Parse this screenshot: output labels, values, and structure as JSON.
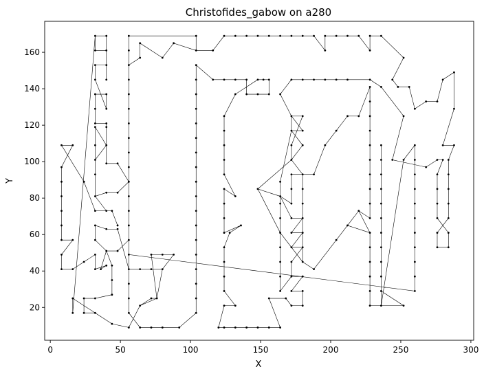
{
  "chart_data": {
    "type": "line",
    "title": "Christofides_gabow on a280",
    "xlabel": "X",
    "ylabel": "Y",
    "xlim": [
      -4,
      302
    ],
    "ylim": [
      2,
      177
    ],
    "xticks": [
      0,
      50,
      100,
      150,
      200,
      250,
      300
    ],
    "yticks": [
      20,
      40,
      60,
      80,
      100,
      120,
      140,
      160
    ],
    "grid": false,
    "marker": "dot",
    "line_color": "#000000",
    "tour": [
      [
        104,
        169
      ],
      [
        104,
        161
      ],
      [
        116,
        161
      ],
      [
        124,
        169
      ],
      [
        132,
        169
      ],
      [
        140,
        169
      ],
      [
        148,
        169
      ],
      [
        156,
        169
      ],
      [
        164,
        169
      ],
      [
        172,
        169
      ],
      [
        180,
        169
      ],
      [
        188,
        169
      ],
      [
        196,
        161
      ],
      [
        196,
        169
      ],
      [
        204,
        169
      ],
      [
        212,
        169
      ],
      [
        220,
        169
      ],
      [
        228,
        161
      ],
      [
        228,
        169
      ],
      [
        236,
        169
      ],
      [
        252,
        157
      ],
      [
        244,
        145
      ],
      [
        248,
        141
      ],
      [
        256,
        141
      ],
      [
        260,
        129
      ],
      [
        268,
        133
      ],
      [
        276,
        133
      ],
      [
        280,
        145
      ],
      [
        288,
        149
      ],
      [
        288,
        129
      ],
      [
        280,
        109
      ],
      [
        288,
        109
      ],
      [
        284,
        101
      ],
      [
        284,
        93
      ],
      [
        284,
        85
      ],
      [
        284,
        77
      ],
      [
        284,
        69
      ],
      [
        276,
        61
      ],
      [
        276,
        53
      ],
      [
        284,
        53
      ],
      [
        284,
        61
      ],
      [
        276,
        69
      ],
      [
        276,
        77
      ],
      [
        276,
        85
      ],
      [
        276,
        93
      ],
      [
        280,
        101
      ],
      [
        276,
        101
      ],
      [
        268,
        97
      ],
      [
        244,
        101
      ],
      [
        252,
        125
      ],
      [
        236,
        141
      ],
      [
        228,
        145
      ],
      [
        212,
        145
      ],
      [
        204,
        145
      ],
      [
        196,
        145
      ],
      [
        188,
        145
      ],
      [
        180,
        145
      ],
      [
        172,
        145
      ],
      [
        164,
        137
      ],
      [
        172,
        125
      ],
      [
        180,
        117
      ],
      [
        172,
        117
      ],
      [
        180,
        109
      ],
      [
        172,
        101
      ],
      [
        180,
        93
      ],
      [
        180,
        85
      ],
      [
        180,
        77
      ],
      [
        180,
        69
      ],
      [
        180,
        61
      ],
      [
        180,
        53
      ],
      [
        180,
        45
      ],
      [
        188,
        41
      ],
      [
        204,
        57
      ],
      [
        212,
        65
      ],
      [
        220,
        73
      ],
      [
        228,
        69
      ],
      [
        228,
        77
      ],
      [
        228,
        85
      ],
      [
        228,
        93
      ],
      [
        228,
        101
      ],
      [
        228,
        109
      ],
      [
        228,
        117
      ],
      [
        228,
        125
      ],
      [
        228,
        133
      ],
      [
        228,
        141
      ],
      [
        220,
        125
      ],
      [
        212,
        125
      ],
      [
        204,
        117
      ],
      [
        196,
        109
      ],
      [
        188,
        93
      ],
      [
        172,
        93
      ],
      [
        172,
        85
      ],
      [
        172,
        77
      ],
      [
        164,
        81
      ],
      [
        148,
        85
      ],
      [
        172,
        101
      ],
      [
        172,
        109
      ],
      [
        180,
        125
      ],
      [
        172,
        125
      ],
      [
        172,
        117
      ],
      [
        164,
        89
      ],
      [
        164,
        77
      ],
      [
        164,
        69
      ],
      [
        164,
        61
      ],
      [
        164,
        53
      ],
      [
        164,
        45
      ],
      [
        164,
        37
      ],
      [
        164,
        29
      ],
      [
        172,
        37
      ],
      [
        180,
        37
      ],
      [
        172,
        29
      ],
      [
        180,
        29
      ],
      [
        180,
        21
      ],
      [
        172,
        21
      ],
      [
        168,
        25
      ],
      [
        156,
        25
      ],
      [
        164,
        9
      ],
      [
        156,
        9
      ],
      [
        148,
        9
      ],
      [
        140,
        9
      ],
      [
        132,
        9
      ],
      [
        124,
        9
      ],
      [
        120,
        9
      ],
      [
        124,
        21
      ],
      [
        132,
        21
      ],
      [
        124,
        29
      ],
      [
        124,
        37
      ],
      [
        124,
        45
      ],
      [
        124,
        53
      ],
      [
        128,
        61
      ],
      [
        136,
        65
      ],
      [
        124,
        61
      ],
      [
        124,
        69
      ],
      [
        124,
        77
      ],
      [
        124,
        85
      ],
      [
        132,
        81
      ],
      [
        124,
        93
      ],
      [
        124,
        101
      ],
      [
        124,
        109
      ],
      [
        124,
        117
      ],
      [
        124,
        125
      ],
      [
        132,
        137
      ],
      [
        148,
        145
      ],
      [
        152,
        145
      ],
      [
        156,
        145
      ],
      [
        156,
        137
      ],
      [
        148,
        137
      ],
      [
        140,
        137
      ],
      [
        140,
        145
      ],
      [
        132,
        145
      ],
      [
        124,
        145
      ],
      [
        116,
        145
      ],
      [
        104,
        153
      ],
      [
        104,
        145
      ],
      [
        104,
        137
      ],
      [
        104,
        129
      ],
      [
        104,
        121
      ],
      [
        104,
        113
      ],
      [
        104,
        105
      ],
      [
        104,
        97
      ],
      [
        104,
        89
      ],
      [
        104,
        81
      ],
      [
        104,
        73
      ],
      [
        104,
        65
      ],
      [
        104,
        57
      ],
      [
        104,
        49
      ],
      [
        104,
        41
      ],
      [
        104,
        33
      ],
      [
        104,
        25
      ],
      [
        104,
        17
      ],
      [
        92,
        9
      ],
      [
        80,
        9
      ],
      [
        72,
        9
      ],
      [
        64,
        9
      ],
      [
        56,
        17
      ],
      [
        56,
        25
      ],
      [
        56,
        33
      ],
      [
        56,
        41
      ],
      [
        64,
        41
      ],
      [
        72,
        41
      ],
      [
        80,
        41
      ],
      [
        88,
        49
      ],
      [
        80,
        49
      ],
      [
        72,
        49
      ],
      [
        76,
        25
      ],
      [
        72,
        25
      ],
      [
        64,
        21
      ],
      [
        56,
        9
      ],
      [
        44,
        11
      ],
      [
        32,
        17
      ],
      [
        24,
        17
      ],
      [
        24,
        25
      ],
      [
        32,
        25
      ],
      [
        44,
        27
      ],
      [
        44,
        35
      ],
      [
        44,
        43
      ],
      [
        40,
        51
      ],
      [
        48,
        51
      ],
      [
        56,
        57
      ],
      [
        56,
        65
      ],
      [
        56,
        73
      ],
      [
        56,
        81
      ],
      [
        56,
        89
      ],
      [
        48,
        99
      ],
      [
        40,
        99
      ],
      [
        40,
        109
      ],
      [
        32,
        119
      ],
      [
        32,
        109
      ],
      [
        32,
        101
      ],
      [
        32,
        93
      ],
      [
        32,
        81
      ],
      [
        40,
        83
      ],
      [
        48,
        83
      ],
      [
        56,
        89
      ],
      [
        56,
        97
      ],
      [
        56,
        105
      ],
      [
        56,
        113
      ],
      [
        56,
        121
      ],
      [
        56,
        129
      ],
      [
        56,
        137
      ],
      [
        56,
        145
      ],
      [
        56,
        153
      ],
      [
        64,
        157
      ],
      [
        64,
        165
      ],
      [
        80,
        157
      ],
      [
        88,
        165
      ],
      [
        104,
        161
      ],
      [
        104,
        169
      ],
      [
        56,
        169
      ],
      [
        56,
        161
      ],
      [
        56,
        153
      ],
      [
        56,
        145
      ],
      [
        56,
        137
      ],
      [
        56,
        129
      ],
      [
        56,
        121
      ],
      [
        56,
        113
      ],
      [
        56,
        105
      ],
      [
        56,
        97
      ],
      [
        56,
        89
      ],
      [
        56,
        81
      ],
      [
        56,
        73
      ],
      [
        56,
        65
      ],
      [
        56,
        57
      ],
      [
        56,
        49
      ],
      [
        56,
        41
      ],
      [
        48,
        63
      ],
      [
        40,
        63
      ],
      [
        32,
        65
      ],
      [
        32,
        57
      ],
      [
        40,
        51
      ],
      [
        36,
        41
      ],
      [
        40,
        43
      ],
      [
        32,
        41
      ],
      [
        32,
        49
      ],
      [
        24,
        45
      ],
      [
        16,
        41
      ],
      [
        8,
        41
      ],
      [
        8,
        49
      ],
      [
        16,
        57
      ],
      [
        8,
        57
      ],
      [
        8,
        65
      ],
      [
        8,
        73
      ],
      [
        8,
        81
      ],
      [
        8,
        89
      ],
      [
        8,
        97
      ],
      [
        16,
        109
      ],
      [
        8,
        109
      ],
      [
        24,
        89
      ],
      [
        32,
        73
      ],
      [
        40,
        73
      ],
      [
        44,
        73
      ],
      [
        48,
        65
      ],
      [
        44,
        73
      ],
      [
        40,
        73
      ],
      [
        32,
        81
      ],
      [
        32,
        93
      ],
      [
        32,
        101
      ],
      [
        40,
        109
      ],
      [
        40,
        119
      ],
      [
        40,
        121
      ],
      [
        32,
        121
      ],
      [
        32,
        129
      ],
      [
        32,
        137
      ],
      [
        40,
        137
      ],
      [
        40,
        129
      ],
      [
        32,
        145
      ],
      [
        32,
        153
      ],
      [
        40,
        153
      ],
      [
        40,
        145
      ],
      [
        40,
        161
      ],
      [
        32,
        161
      ],
      [
        32,
        169
      ],
      [
        40,
        169
      ],
      [
        40,
        161
      ],
      [
        32,
        161
      ],
      [
        32,
        169
      ],
      [
        16,
        17
      ],
      [
        16,
        25
      ],
      [
        32,
        17
      ],
      [
        44,
        11
      ],
      [
        56,
        9
      ],
      [
        64,
        21
      ],
      [
        76,
        25
      ],
      [
        80,
        41
      ],
      [
        56,
        41
      ],
      [
        56,
        49
      ],
      [
        260,
        29
      ],
      [
        260,
        37
      ],
      [
        260,
        45
      ],
      [
        260,
        53
      ],
      [
        260,
        61
      ],
      [
        260,
        69
      ],
      [
        260,
        77
      ],
      [
        260,
        85
      ],
      [
        260,
        93
      ],
      [
        260,
        101
      ],
      [
        260,
        109
      ],
      [
        252,
        101
      ],
      [
        236,
        21
      ],
      [
        252,
        21
      ],
      [
        236,
        29
      ],
      [
        236,
        37
      ],
      [
        236,
        45
      ],
      [
        236,
        53
      ],
      [
        236,
        61
      ],
      [
        236,
        69
      ],
      [
        236,
        77
      ],
      [
        236,
        85
      ],
      [
        236,
        93
      ],
      [
        236,
        101
      ],
      [
        236,
        109
      ],
      [
        236,
        21
      ],
      [
        228,
        21
      ],
      [
        228,
        29
      ],
      [
        228,
        37
      ],
      [
        228,
        45
      ],
      [
        228,
        53
      ],
      [
        228,
        61
      ],
      [
        220,
        73
      ],
      [
        228,
        61
      ],
      [
        212,
        65
      ],
      [
        204,
        57
      ],
      [
        188,
        41
      ],
      [
        180,
        45
      ],
      [
        164,
        61
      ],
      [
        148,
        85
      ],
      [
        164,
        81
      ],
      [
        172,
        69
      ],
      [
        180,
        69
      ],
      [
        172,
        61
      ],
      [
        180,
        61
      ],
      [
        172,
        53
      ],
      [
        180,
        53
      ],
      [
        172,
        45
      ],
      [
        172,
        37
      ]
    ]
  }
}
